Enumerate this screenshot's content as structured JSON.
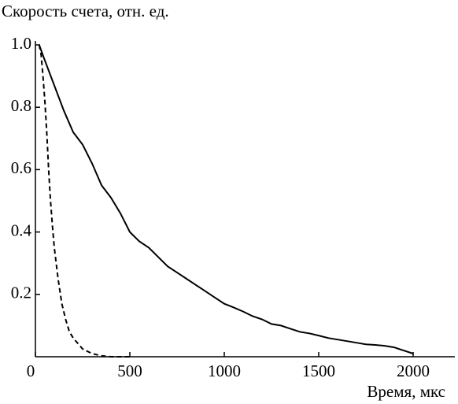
{
  "chart_data": {
    "type": "line",
    "title": "Скорость счета, отн. ед.",
    "x_label": "Время, мкс",
    "xlim": [
      0,
      2200
    ],
    "ylim": [
      0,
      1
    ],
    "xticks": [
      0,
      500,
      1000,
      1500,
      2000
    ],
    "yticks": [
      0.2,
      0.4,
      0.6,
      0.8,
      {
        "value": 1,
        "label": "1.0"
      }
    ],
    "series": [
      {
        "color": "#000000",
        "dashed": false,
        "x": [
          20,
          50,
          100,
          150,
          200,
          250,
          300,
          350,
          400,
          450,
          500,
          550,
          600,
          650,
          700,
          750,
          800,
          850,
          900,
          950,
          1000,
          1050,
          1100,
          1150,
          1200,
          1250,
          1300,
          1350,
          1400,
          1450,
          1500,
          1550,
          1600,
          1650,
          1700,
          1750,
          1800,
          1850,
          1900,
          1950,
          2000
        ],
        "values": [
          1.0,
          0.95,
          0.87,
          0.79,
          0.72,
          0.68,
          0.62,
          0.55,
          0.51,
          0.46,
          0.4,
          0.37,
          0.35,
          0.32,
          0.29,
          0.27,
          0.25,
          0.23,
          0.21,
          0.19,
          0.17,
          0.158,
          0.145,
          0.13,
          0.12,
          0.105,
          0.1,
          0.09,
          0.08,
          0.075,
          0.068,
          0.06,
          0.055,
          0.05,
          0.045,
          0.04,
          0.038,
          0.035,
          0.03,
          0.02,
          0.01
        ]
      },
      {
        "color": "#000000",
        "dashed": true,
        "x": [
          20,
          30,
          40,
          50,
          60,
          70,
          80,
          90,
          100,
          120,
          140,
          160,
          180,
          200,
          250,
          300,
          350,
          400,
          450,
          500
        ],
        "values": [
          1.0,
          0.97,
          0.9,
          0.82,
          0.72,
          0.6,
          0.5,
          0.42,
          0.35,
          0.25,
          0.17,
          0.12,
          0.08,
          0.06,
          0.025,
          0.01,
          0.003,
          0,
          0,
          0
        ]
      }
    ]
  }
}
